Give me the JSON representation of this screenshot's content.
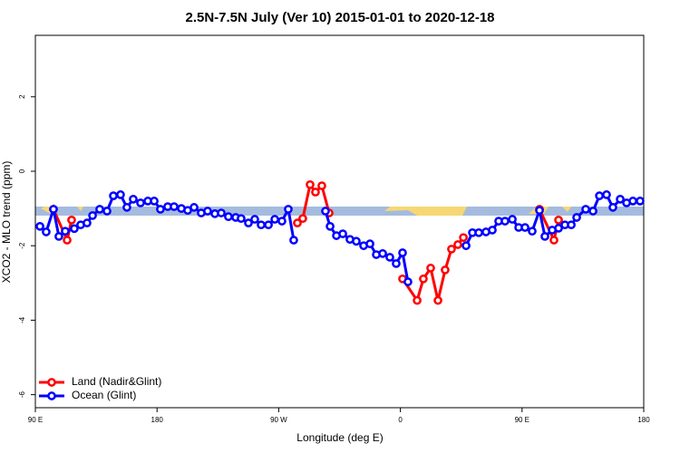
{
  "chart_data": {
    "type": "line",
    "title": "2.5N-7.5N July (Ver 10)   2015-01-01 to 2020-12-18",
    "xlabel": "Longitude (deg E)",
    "ylabel": "XCO2 - MLO trend (ppm)",
    "xlim": [
      90,
      540
    ],
    "ylim": [
      -6.35,
      3.65
    ],
    "xticks": [
      {
        "value": 90,
        "label": "90 E"
      },
      180,
      {
        "value": 270,
        "label": "90 W"
      },
      {
        "value": 360,
        "label": "0"
      },
      {
        "value": 450,
        "label": "90 E"
      },
      {
        "value": 540,
        "label": "180"
      }
    ],
    "yticks": [
      -6,
      -4,
      -2,
      0,
      2
    ],
    "legend": "bottom-left",
    "series": [
      {
        "name": "Land (Nadir&Glint)",
        "color": "#ff0000",
        "x": [
          103.4,
          113.5,
          116.8,
          null,
          283.8,
          287.8,
          293.2,
          297.2,
          301.9,
          307.3,
          null,
          361.6,
          372.4,
          377.0,
          382.4,
          387.8,
          393.1,
          397.8,
          402.5,
          406.6,
          null,
          462.9,
          473.6,
          477.0
        ],
        "values": [
          -1.02,
          -1.85,
          -1.31,
          null,
          -1.39,
          -1.27,
          -0.36,
          -0.56,
          -0.39,
          -1.12,
          null,
          -2.89,
          -3.47,
          -2.89,
          -2.6,
          -3.47,
          -2.65,
          -2.09,
          -1.97,
          -1.78,
          null,
          -1.02,
          -1.85,
          -1.31
        ]
      },
      {
        "name": "Ocean (Glint)",
        "color": "#0000ff",
        "x": [
          93.4,
          98.0,
          103.4,
          107.4,
          112.1,
          118.8,
          123.5,
          128.2,
          132.3,
          137.6,
          143.0,
          147.7,
          153.0,
          157.7,
          162.4,
          167.8,
          173.2,
          177.9,
          182.5,
          187.9,
          192.6,
          198.0,
          202.7,
          207.4,
          212.7,
          217.4,
          222.8,
          227.5,
          232.8,
          238.2,
          242.2,
          247.6,
          252.3,
          257.0,
          262.4,
          267.1,
          272.4,
          277.1,
          281.1,
          null,
          304.6,
          308.0,
          312.7,
          317.4,
          322.7,
          327.4,
          332.8,
          337.5,
          342.2,
          346.9,
          352.2,
          356.9,
          361.6,
          365.6,
          null,
          408.6,
          413.3,
          418.0,
          423.3,
          428.0,
          432.7,
          437.4,
          442.8,
          447.5,
          452.2,
          457.5,
          462.9,
          466.9,
          472.3,
          477.0,
          481.7,
          486.4,
          490.4,
          497.1,
          502.5,
          507.2,
          512.5,
          517.2,
          522.6,
          527.3,
          532.0,
          537.3
        ],
        "values": [
          -1.48,
          -1.63,
          -1.02,
          -1.75,
          -1.61,
          -1.54,
          -1.44,
          -1.39,
          -1.19,
          -1.02,
          -1.07,
          -0.66,
          -0.63,
          -0.97,
          -0.75,
          -0.85,
          -0.8,
          -0.8,
          -1.02,
          -0.95,
          -0.95,
          -1.0,
          -1.05,
          -0.97,
          -1.12,
          -1.07,
          -1.14,
          -1.12,
          -1.22,
          -1.24,
          -1.27,
          -1.39,
          -1.29,
          -1.44,
          -1.44,
          -1.29,
          -1.34,
          -1.02,
          -1.85,
          null,
          -1.07,
          -1.48,
          -1.73,
          -1.68,
          -1.83,
          -1.88,
          -2.0,
          -1.95,
          -2.24,
          -2.21,
          -2.31,
          -2.48,
          -2.19,
          -2.97,
          null,
          -2.0,
          -1.65,
          -1.65,
          -1.63,
          -1.58,
          -1.34,
          -1.34,
          -1.29,
          -1.51,
          -1.51,
          -1.61,
          -1.05,
          -1.75,
          -1.58,
          -1.53,
          -1.44,
          -1.44,
          -1.24,
          -1.02,
          -1.07,
          -0.66,
          -0.63,
          -0.97,
          -0.75,
          -0.85,
          -0.8,
          -0.8
        ]
      }
    ]
  }
}
